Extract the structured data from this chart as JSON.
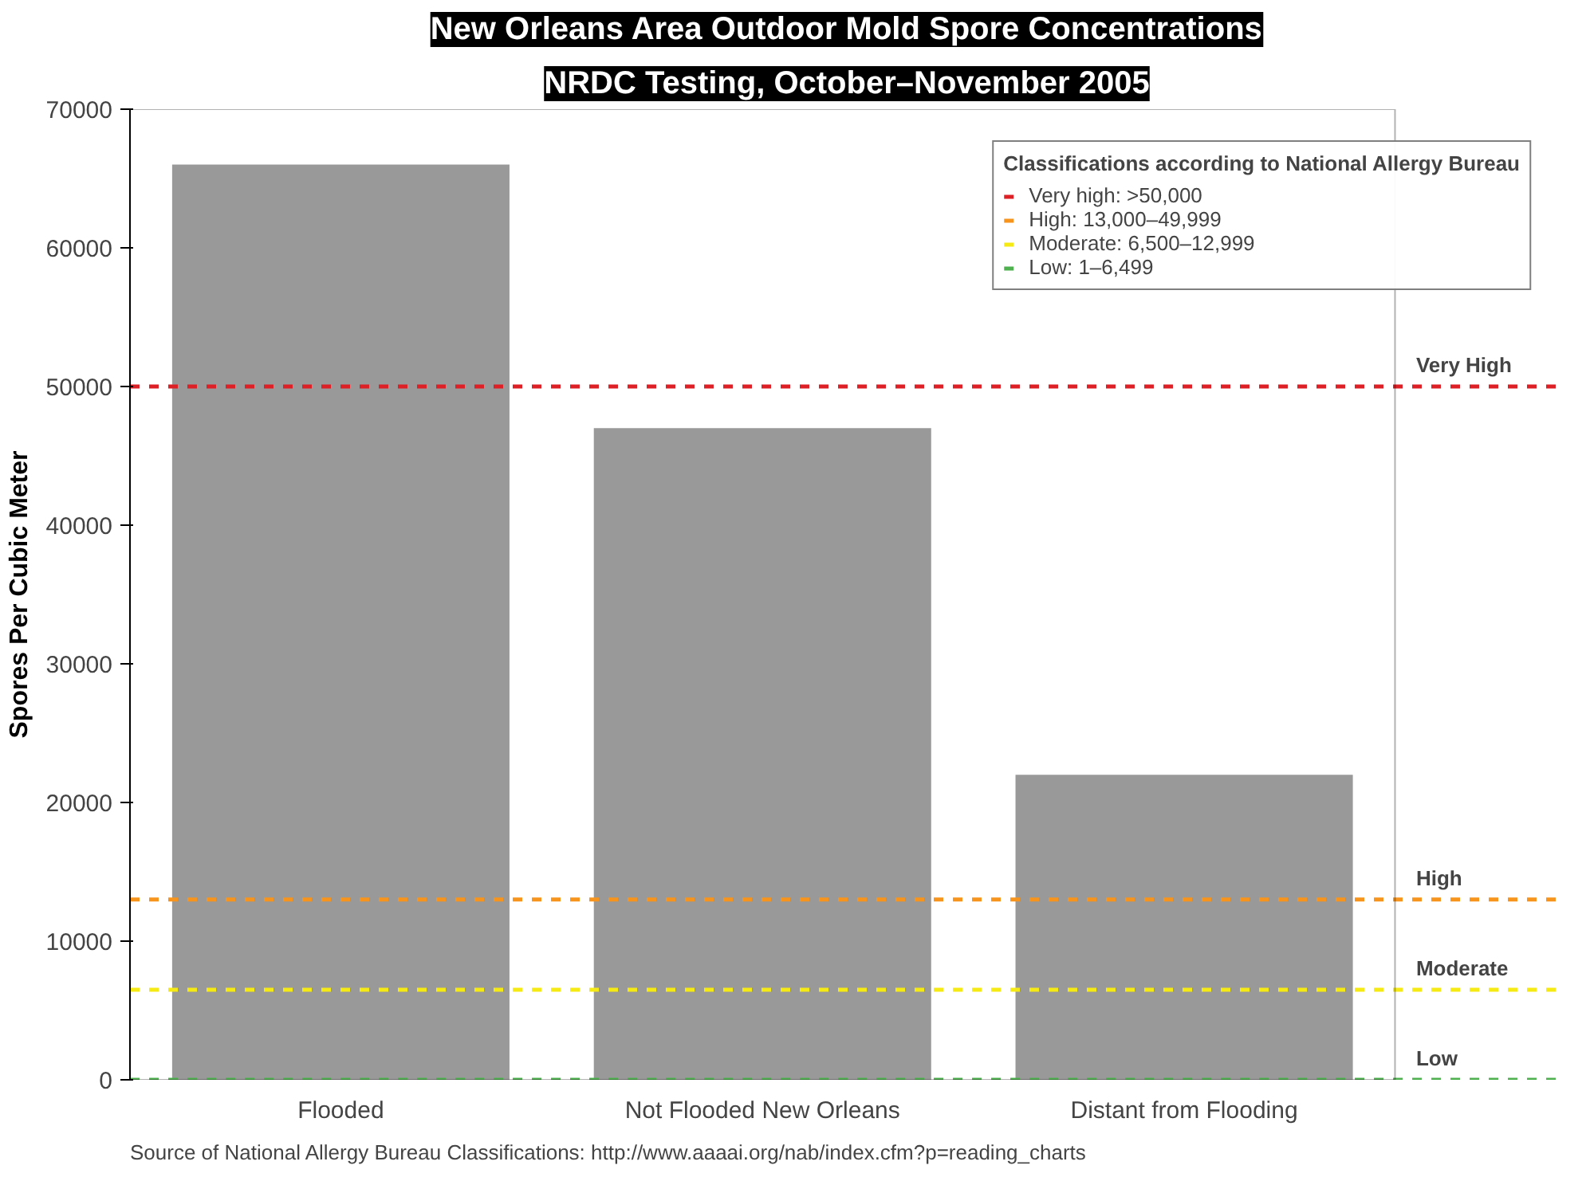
{
  "chart_data": {
    "type": "bar",
    "title": "New Orleans Area Outdoor Mold Spore Concentrations",
    "subtitle": "NRDC Testing, October–November 2005",
    "ylabel": "Spores Per Cubic Meter",
    "categories": [
      "Flooded",
      "Not Flooded New Orleans",
      "Distant from Flooding"
    ],
    "values": [
      66000,
      47000,
      22000
    ],
    "color": "#999999",
    "ylim": [
      0,
      70000
    ],
    "yticks": [
      0,
      10000,
      20000,
      30000,
      40000,
      50000,
      60000,
      70000
    ],
    "grid": false,
    "ref_lines": [
      {
        "axis": "y",
        "value": 50000,
        "label": "Very High",
        "color": "#dd1f26",
        "line_style": "dashed"
      },
      {
        "axis": "y",
        "value": 13000,
        "label": "High",
        "color": "#f7941d",
        "line_style": "dashed"
      },
      {
        "axis": "y",
        "value": 6500,
        "label": "Moderate",
        "color": "#f5ea14",
        "line_style": "dashed"
      },
      {
        "axis": "y",
        "value": 1,
        "label": "Low",
        "color": "#4fb04f",
        "line_style": "dashed"
      }
    ],
    "legend_title": "Classifications according to National Allergy Bureau",
    "annotations": [
      "Very high: >50,000",
      "High: 13,000–49,999",
      "Moderate: 6,500–12,999",
      "Low: 1–6,499",
      "Source of National Allergy Bureau Classifications: http://www.aaaai.org/nab/index.cfm?p=reading_charts"
    ]
  }
}
